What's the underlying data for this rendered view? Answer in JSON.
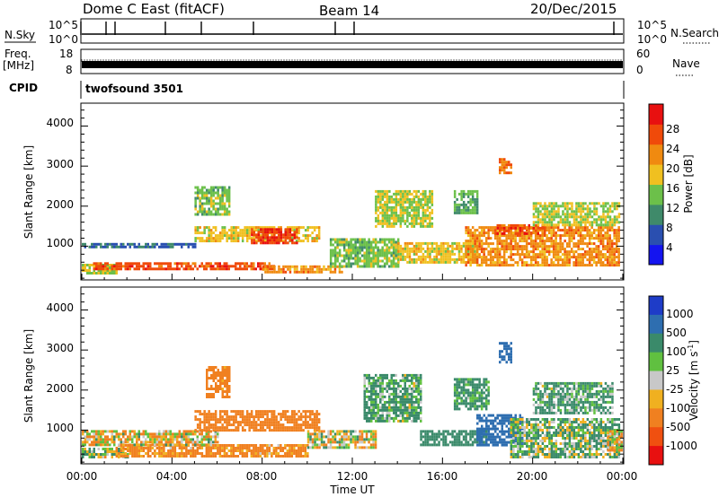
{
  "header": {
    "station": "Dome C East (fitACF)",
    "beam": "Beam 14",
    "date": "20/Dec/2015"
  },
  "strips": {
    "nsky_label": "N.Sky",
    "nsky_ticks": [
      "10^5",
      "10^0"
    ],
    "nsearch_label": "N.Search",
    "nsearch_ticks": [
      "10^5",
      "10^0"
    ],
    "freq_label_line1": "Freq.",
    "freq_label_line2": "[MHz]",
    "freq_ticks": [
      "18",
      "8"
    ],
    "nave_label": "Nave",
    "nave_ticks": [
      "60",
      "0"
    ],
    "cpid_label": "CPID",
    "cpid_value": "twofsound 3501"
  },
  "axes": {
    "xlabel": "Time UT",
    "x_ticks": [
      "00:00",
      "04:00",
      "08:00",
      "12:00",
      "16:00",
      "20:00",
      "00:00"
    ],
    "ylabel": "Slant Range [km]",
    "y_ticks": [
      "1000",
      "2000",
      "3000",
      "4000"
    ]
  },
  "colorbars": {
    "power": {
      "label": "Power [dB]",
      "ticks": [
        "4",
        "8",
        "12",
        "16",
        "20",
        "24",
        "28"
      ],
      "colors": [
        "#1414f0",
        "#2a4fb0",
        "#3f8a6a",
        "#6cc04a",
        "#f0c020",
        "#f08a10",
        "#f04a0a",
        "#e81010"
      ]
    },
    "velocity": {
      "label": "Velocity [m s",
      "label_sup": "-1",
      "label_end": "]",
      "ticks": [
        "1000",
        "500",
        "100",
        "25",
        "-25",
        "-100",
        "-500",
        "-1000"
      ],
      "colors": [
        "#1e3cc8",
        "#2e6eb0",
        "#3a8a6a",
        "#60c040",
        "#c8c8c8",
        "#f0b020",
        "#f08020",
        "#f05010",
        "#e81010"
      ]
    }
  },
  "chart_data": {
    "type": "heatmap",
    "title": "Dome C East (fitACF) Beam 14 20/Dec/2015",
    "xlabel": "Time UT",
    "ylabel": "Slant Range [km]",
    "xlim_hours": [
      0,
      24
    ],
    "ylim_km": [
      180,
      4550
    ],
    "grid": false,
    "panels": [
      {
        "name": "Power [dB]",
        "scale": [
          0,
          32
        ],
        "regions": [
          {
            "t": [
              0.0,
              1.5
            ],
            "r": [
              300,
              560
            ],
            "v": 16
          },
          {
            "t": [
              0.5,
              8.5
            ],
            "r": [
              400,
              600
            ],
            "v": 26
          },
          {
            "t": [
              0.0,
              5.0
            ],
            "r": [
              950,
              1080
            ],
            "v": 7
          },
          {
            "t": [
              5.0,
              10.5
            ],
            "r": [
              1100,
              1500
            ],
            "v": 18
          },
          {
            "t": [
              7.5,
              9.5
            ],
            "r": [
              1100,
              1450
            ],
            "v": 28
          },
          {
            "t": [
              5.0,
              6.5
            ],
            "r": [
              1800,
              2500
            ],
            "v": 14
          },
          {
            "t": [
              8.0,
              11.5
            ],
            "r": [
              350,
              520
            ],
            "v": 22
          },
          {
            "t": [
              11.0,
              14.0
            ],
            "r": [
              500,
              1200
            ],
            "v": 14
          },
          {
            "t": [
              13.0,
              15.5
            ],
            "r": [
              1500,
              2400
            ],
            "v": 16
          },
          {
            "t": [
              14.0,
              17.5
            ],
            "r": [
              600,
              1100
            ],
            "v": 18
          },
          {
            "t": [
              16.5,
              17.5
            ],
            "r": [
              1800,
              2400
            ],
            "v": 12
          },
          {
            "t": [
              17.0,
              23.8
            ],
            "r": [
              500,
              1500
            ],
            "v": 22
          },
          {
            "t": [
              18.3,
              20.5
            ],
            "r": [
              1300,
              1550
            ],
            "v": 26
          },
          {
            "t": [
              18.5,
              19.0
            ],
            "r": [
              2800,
              3200
            ],
            "v": 24
          },
          {
            "t": [
              20.0,
              23.8
            ],
            "r": [
              1500,
              2100
            ],
            "v": 16
          }
        ]
      },
      {
        "name": "Velocity [m s-1]",
        "scale": [
          -1000,
          1000
        ],
        "regions": [
          {
            "t": [
              0.0,
              2.0
            ],
            "r": [
              300,
              560
            ],
            "v": 60
          },
          {
            "t": [
              1.5,
              10.0
            ],
            "r": [
              350,
              650
            ],
            "v": -200
          },
          {
            "t": [
              0.0,
              6.0
            ],
            "r": [
              650,
              1000
            ],
            "v": -60
          },
          {
            "t": [
              5.0,
              10.5
            ],
            "r": [
              1000,
              1500
            ],
            "v": -300
          },
          {
            "t": [
              5.5,
              6.5
            ],
            "r": [
              1800,
              2600
            ],
            "v": -250
          },
          {
            "t": [
              10.0,
              13.0
            ],
            "r": [
              550,
              1000
            ],
            "v": -20
          },
          {
            "t": [
              12.5,
              15.0
            ],
            "r": [
              1200,
              2400
            ],
            "v": 150
          },
          {
            "t": [
              15.0,
              18.0
            ],
            "r": [
              600,
              1000
            ],
            "v": 300
          },
          {
            "t": [
              16.5,
              18.0
            ],
            "r": [
              1500,
              2300
            ],
            "v": 200
          },
          {
            "t": [
              17.5,
              19.5
            ],
            "r": [
              600,
              1400
            ],
            "v": 800
          },
          {
            "t": [
              18.5,
              19.0
            ],
            "r": [
              2700,
              3200
            ],
            "v": 700
          },
          {
            "t": [
              19.0,
              23.8
            ],
            "r": [
              300,
              1300
            ],
            "v": 80
          },
          {
            "t": [
              20.0,
              23.5
            ],
            "r": [
              1400,
              2200
            ],
            "v": 150
          },
          {
            "t": [
              23.3,
              23.9
            ],
            "r": [
              500,
              1000
            ],
            "v": -80
          }
        ]
      }
    ]
  }
}
